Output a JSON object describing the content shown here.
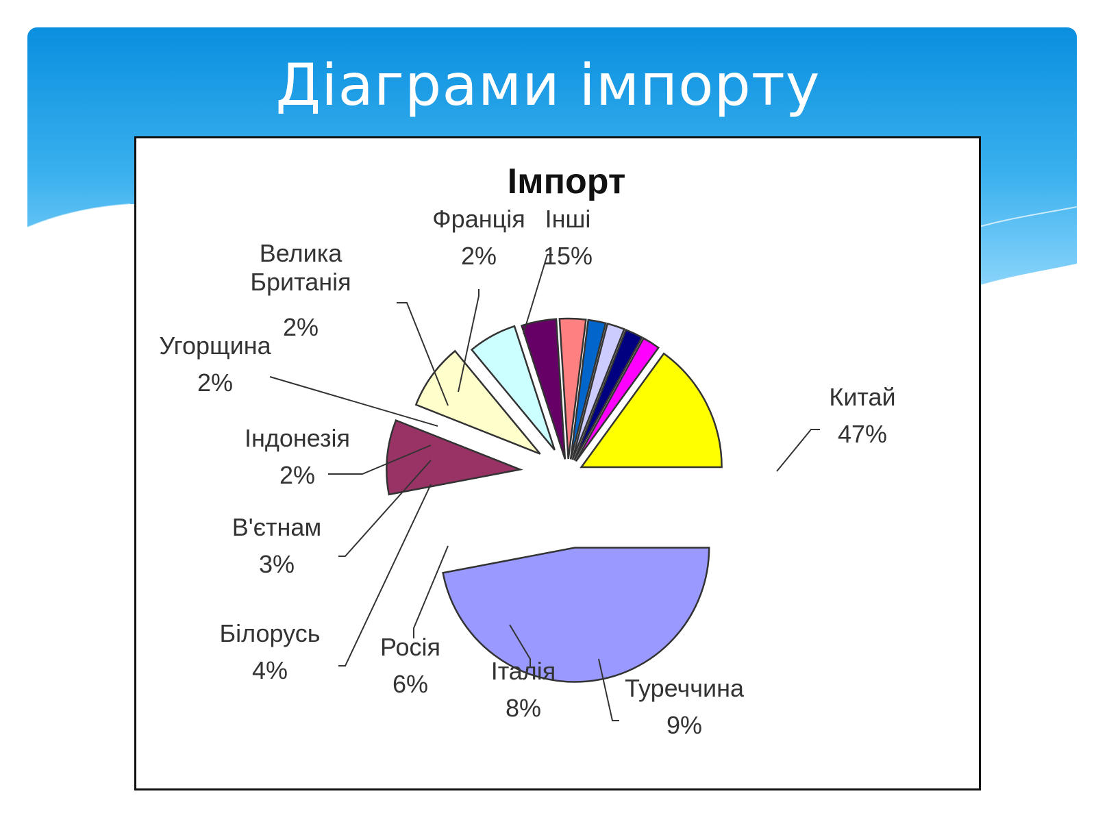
{
  "slide": {
    "title": "Діаграми імпорту",
    "header_colors": [
      "#0a8fdf",
      "#39b0ee",
      "#8ed6fb"
    ]
  },
  "chart_data": {
    "type": "pie",
    "title": "Імпорт",
    "exploded": true,
    "label_format": "category + percent",
    "slices": [
      {
        "label": "Китай",
        "percent_text": "47%",
        "value": 47,
        "color": "#9999ff"
      },
      {
        "label": "Туреччина",
        "percent_text": "9%",
        "value": 9,
        "color": "#993366"
      },
      {
        "label": "Італія",
        "percent_text": "8%",
        "value": 8,
        "color": "#ffffcc"
      },
      {
        "label": "Росія",
        "percent_text": "6%",
        "value": 6,
        "color": "#ccffff"
      },
      {
        "label": "Білорусь",
        "percent_text": "4%",
        "value": 4,
        "color": "#660066"
      },
      {
        "label": "В'єтнам",
        "percent_text": "3%",
        "value": 3,
        "color": "#ff8080"
      },
      {
        "label": "Індонезія",
        "percent_text": "2%",
        "value": 2,
        "color": "#0066cc"
      },
      {
        "label": "Угорщина",
        "percent_text": "2%",
        "value": 2,
        "color": "#ccccff"
      },
      {
        "label": "Велика Британія",
        "percent_text": "2%",
        "value": 2,
        "color": "#000080"
      },
      {
        "label": "Франція",
        "percent_text": "2%",
        "value": 2,
        "color": "#ff00ff"
      },
      {
        "label": "Інші",
        "percent_text": "15%",
        "value": 15,
        "color": "#ffff00"
      }
    ]
  }
}
